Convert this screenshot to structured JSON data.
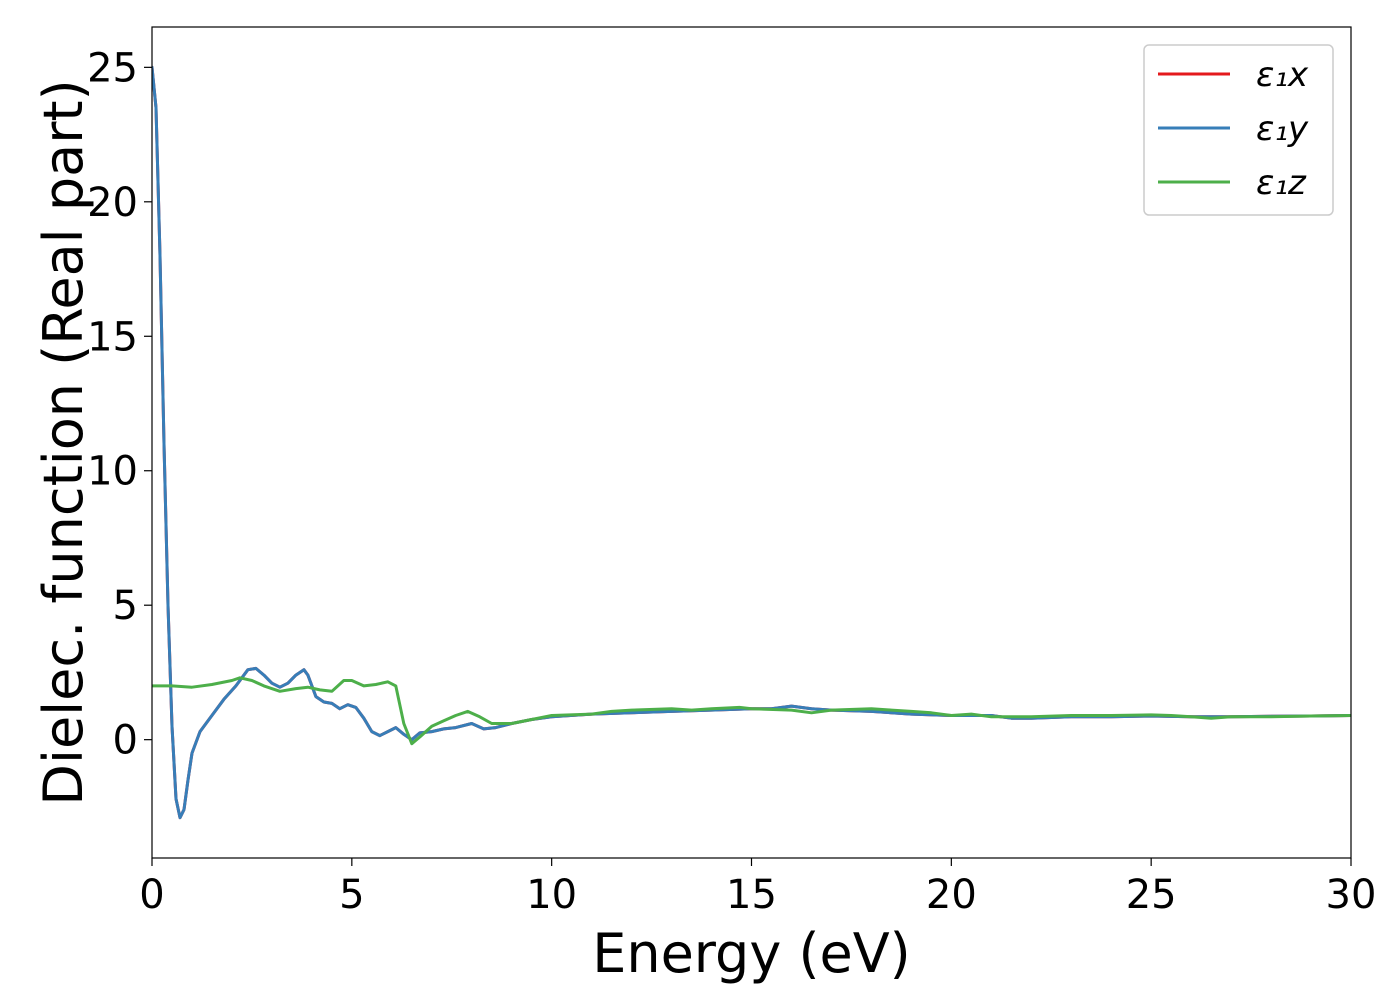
{
  "chart_data": {
    "type": "line",
    "xlabel": "Energy (eV)",
    "ylabel": "Dielec. function (Real part)",
    "xlim": [
      0,
      30
    ],
    "ylim": [
      -4.4,
      26.5
    ],
    "xticks": [
      0,
      5,
      10,
      15,
      20,
      25,
      30
    ],
    "yticks": [
      0,
      5,
      10,
      15,
      20,
      25
    ],
    "grid": false,
    "legend_position": "top-right",
    "series": [
      {
        "name": "ε₁x",
        "color": "#e41a1c",
        "points": [
          [
            0.0,
            25.0
          ],
          [
            0.1,
            23.5
          ],
          [
            0.2,
            18.0
          ],
          [
            0.3,
            11.0
          ],
          [
            0.4,
            5.0
          ],
          [
            0.5,
            0.5
          ],
          [
            0.6,
            -2.2
          ],
          [
            0.7,
            -2.9
          ],
          [
            0.8,
            -2.6
          ],
          [
            0.9,
            -1.5
          ],
          [
            1.0,
            -0.5
          ],
          [
            1.2,
            0.3
          ],
          [
            1.5,
            0.9
          ],
          [
            1.8,
            1.5
          ],
          [
            2.1,
            2.0
          ],
          [
            2.4,
            2.6
          ],
          [
            2.6,
            2.65
          ],
          [
            2.8,
            2.4
          ],
          [
            3.0,
            2.1
          ],
          [
            3.2,
            1.95
          ],
          [
            3.4,
            2.1
          ],
          [
            3.6,
            2.4
          ],
          [
            3.8,
            2.6
          ],
          [
            3.9,
            2.4
          ],
          [
            4.1,
            1.6
          ],
          [
            4.3,
            1.4
          ],
          [
            4.5,
            1.35
          ],
          [
            4.7,
            1.15
          ],
          [
            4.9,
            1.3
          ],
          [
            5.1,
            1.2
          ],
          [
            5.3,
            0.8
          ],
          [
            5.5,
            0.3
          ],
          [
            5.7,
            0.15
          ],
          [
            5.9,
            0.3
          ],
          [
            6.1,
            0.45
          ],
          [
            6.3,
            0.2
          ],
          [
            6.5,
            0.0
          ],
          [
            6.7,
            0.25
          ],
          [
            7.0,
            0.3
          ],
          [
            7.3,
            0.4
          ],
          [
            7.6,
            0.45
          ],
          [
            8.0,
            0.6
          ],
          [
            8.3,
            0.4
          ],
          [
            8.6,
            0.45
          ],
          [
            9.0,
            0.6
          ],
          [
            9.5,
            0.75
          ],
          [
            10.0,
            0.85
          ],
          [
            11.0,
            0.95
          ],
          [
            12.0,
            1.0
          ],
          [
            13.0,
            1.05
          ],
          [
            14.0,
            1.1
          ],
          [
            15.0,
            1.15
          ],
          [
            15.5,
            1.15
          ],
          [
            16.0,
            1.25
          ],
          [
            16.5,
            1.15
          ],
          [
            17.0,
            1.1
          ],
          [
            18.0,
            1.05
          ],
          [
            19.0,
            0.95
          ],
          [
            20.0,
            0.9
          ],
          [
            21.0,
            0.9
          ],
          [
            21.5,
            0.8
          ],
          [
            22.0,
            0.8
          ],
          [
            23.0,
            0.85
          ],
          [
            24.0,
            0.85
          ],
          [
            25.0,
            0.88
          ],
          [
            26.0,
            0.85
          ],
          [
            27.0,
            0.85
          ],
          [
            28.0,
            0.87
          ],
          [
            29.0,
            0.88
          ],
          [
            30.0,
            0.9
          ]
        ]
      },
      {
        "name": "ε₁y",
        "color": "#377eb8",
        "points": [
          [
            0.0,
            25.0
          ],
          [
            0.1,
            23.5
          ],
          [
            0.2,
            18.0
          ],
          [
            0.3,
            11.0
          ],
          [
            0.4,
            5.0
          ],
          [
            0.5,
            0.5
          ],
          [
            0.6,
            -2.2
          ],
          [
            0.7,
            -2.9
          ],
          [
            0.8,
            -2.6
          ],
          [
            0.9,
            -1.5
          ],
          [
            1.0,
            -0.5
          ],
          [
            1.2,
            0.3
          ],
          [
            1.5,
            0.9
          ],
          [
            1.8,
            1.5
          ],
          [
            2.1,
            2.0
          ],
          [
            2.4,
            2.6
          ],
          [
            2.6,
            2.65
          ],
          [
            2.8,
            2.4
          ],
          [
            3.0,
            2.1
          ],
          [
            3.2,
            1.95
          ],
          [
            3.4,
            2.1
          ],
          [
            3.6,
            2.4
          ],
          [
            3.8,
            2.6
          ],
          [
            3.9,
            2.4
          ],
          [
            4.1,
            1.6
          ],
          [
            4.3,
            1.4
          ],
          [
            4.5,
            1.35
          ],
          [
            4.7,
            1.15
          ],
          [
            4.9,
            1.3
          ],
          [
            5.1,
            1.2
          ],
          [
            5.3,
            0.8
          ],
          [
            5.5,
            0.3
          ],
          [
            5.7,
            0.15
          ],
          [
            5.9,
            0.3
          ],
          [
            6.1,
            0.45
          ],
          [
            6.3,
            0.2
          ],
          [
            6.5,
            0.0
          ],
          [
            6.7,
            0.25
          ],
          [
            7.0,
            0.3
          ],
          [
            7.3,
            0.4
          ],
          [
            7.6,
            0.45
          ],
          [
            8.0,
            0.6
          ],
          [
            8.3,
            0.4
          ],
          [
            8.6,
            0.45
          ],
          [
            9.0,
            0.6
          ],
          [
            9.5,
            0.75
          ],
          [
            10.0,
            0.85
          ],
          [
            11.0,
            0.95
          ],
          [
            12.0,
            1.0
          ],
          [
            13.0,
            1.05
          ],
          [
            14.0,
            1.1
          ],
          [
            15.0,
            1.15
          ],
          [
            15.5,
            1.15
          ],
          [
            16.0,
            1.25
          ],
          [
            16.5,
            1.15
          ],
          [
            17.0,
            1.1
          ],
          [
            18.0,
            1.05
          ],
          [
            19.0,
            0.95
          ],
          [
            20.0,
            0.9
          ],
          [
            21.0,
            0.9
          ],
          [
            21.5,
            0.8
          ],
          [
            22.0,
            0.8
          ],
          [
            23.0,
            0.85
          ],
          [
            24.0,
            0.85
          ],
          [
            25.0,
            0.88
          ],
          [
            26.0,
            0.85
          ],
          [
            27.0,
            0.85
          ],
          [
            28.0,
            0.87
          ],
          [
            29.0,
            0.88
          ],
          [
            30.0,
            0.9
          ]
        ]
      },
      {
        "name": "ε₁z",
        "color": "#4daf4a",
        "points": [
          [
            0.0,
            2.0
          ],
          [
            0.5,
            2.0
          ],
          [
            1.0,
            1.95
          ],
          [
            1.5,
            2.05
          ],
          [
            2.0,
            2.2
          ],
          [
            2.2,
            2.3
          ],
          [
            2.5,
            2.2
          ],
          [
            2.8,
            2.0
          ],
          [
            3.2,
            1.8
          ],
          [
            3.6,
            1.9
          ],
          [
            3.9,
            1.95
          ],
          [
            4.2,
            1.85
          ],
          [
            4.5,
            1.8
          ],
          [
            4.8,
            2.2
          ],
          [
            5.0,
            2.2
          ],
          [
            5.3,
            2.0
          ],
          [
            5.6,
            2.05
          ],
          [
            5.9,
            2.15
          ],
          [
            6.1,
            2.0
          ],
          [
            6.3,
            0.6
          ],
          [
            6.5,
            -0.15
          ],
          [
            6.7,
            0.1
          ],
          [
            7.0,
            0.5
          ],
          [
            7.3,
            0.7
          ],
          [
            7.6,
            0.9
          ],
          [
            7.9,
            1.05
          ],
          [
            8.2,
            0.85
          ],
          [
            8.5,
            0.6
          ],
          [
            9.0,
            0.6
          ],
          [
            9.5,
            0.75
          ],
          [
            10.0,
            0.9
          ],
          [
            11.0,
            0.95
          ],
          [
            11.5,
            1.05
          ],
          [
            12.0,
            1.1
          ],
          [
            13.0,
            1.15
          ],
          [
            13.5,
            1.1
          ],
          [
            14.0,
            1.15
          ],
          [
            14.7,
            1.2
          ],
          [
            15.0,
            1.15
          ],
          [
            16.0,
            1.1
          ],
          [
            16.5,
            1.0
          ],
          [
            17.0,
            1.1
          ],
          [
            18.0,
            1.15
          ],
          [
            18.5,
            1.1
          ],
          [
            19.0,
            1.05
          ],
          [
            19.5,
            1.0
          ],
          [
            20.0,
            0.9
          ],
          [
            20.5,
            0.95
          ],
          [
            21.0,
            0.85
          ],
          [
            22.0,
            0.85
          ],
          [
            23.0,
            0.9
          ],
          [
            24.0,
            0.9
          ],
          [
            25.0,
            0.92
          ],
          [
            25.5,
            0.9
          ],
          [
            26.0,
            0.85
          ],
          [
            26.5,
            0.8
          ],
          [
            27.0,
            0.85
          ],
          [
            28.0,
            0.85
          ],
          [
            29.0,
            0.88
          ],
          [
            30.0,
            0.9
          ]
        ]
      }
    ]
  }
}
